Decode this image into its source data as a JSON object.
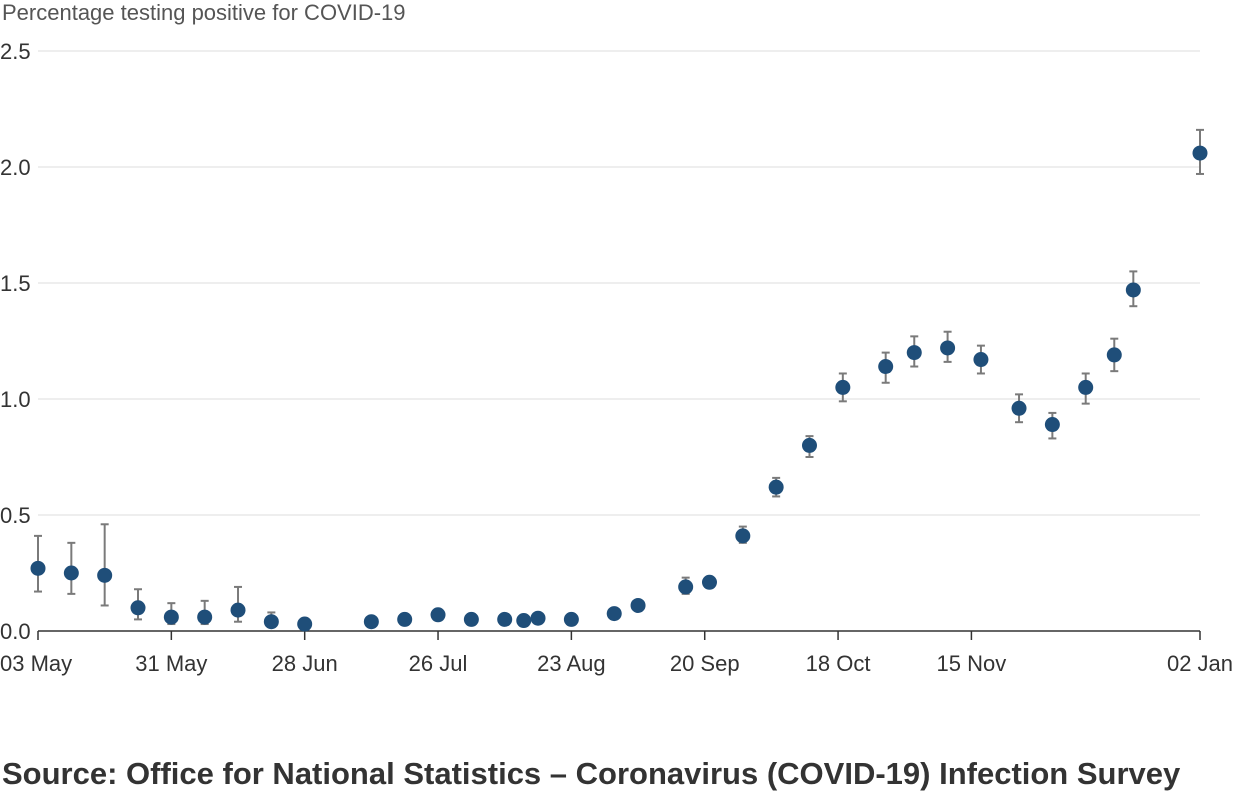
{
  "chart_data": {
    "type": "scatter",
    "ylabel": "Percentage testing positive for COVID-19",
    "xlabel": "",
    "ylim": [
      0,
      2.5
    ],
    "y_ticks": [
      "0.0",
      "0.5",
      "1.0",
      "1.5",
      "2.0",
      "2.5"
    ],
    "x_ticks": [
      {
        "date": "2020-05-03",
        "label": "03 May"
      },
      {
        "date": "2020-05-31",
        "label": "31 May"
      },
      {
        "date": "2020-06-28",
        "label": "28 Jun"
      },
      {
        "date": "2020-07-26",
        "label": "26 Jul"
      },
      {
        "date": "2020-08-23",
        "label": "23 Aug"
      },
      {
        "date": "2020-09-20",
        "label": "20 Sep"
      },
      {
        "date": "2020-10-18",
        "label": "18 Oct"
      },
      {
        "date": "2020-11-15",
        "label": "15 Nov"
      },
      {
        "date": "2021-01-02",
        "label": "02 Jan"
      }
    ],
    "grid": "horizontal",
    "colors": {
      "point": "#1f4e79",
      "error_bar": "#7a7a7a",
      "grid": "#dddddd",
      "axis": "#333333"
    },
    "points": [
      {
        "date": "2020-05-03",
        "value": 0.27,
        "low": 0.17,
        "high": 0.41
      },
      {
        "date": "2020-05-10",
        "value": 0.25,
        "low": 0.16,
        "high": 0.38
      },
      {
        "date": "2020-05-17",
        "value": 0.24,
        "low": 0.11,
        "high": 0.46
      },
      {
        "date": "2020-05-24",
        "value": 0.1,
        "low": 0.05,
        "high": 0.18
      },
      {
        "date": "2020-05-31",
        "value": 0.06,
        "low": 0.03,
        "high": 0.12
      },
      {
        "date": "2020-06-07",
        "value": 0.06,
        "low": 0.03,
        "high": 0.13
      },
      {
        "date": "2020-06-14",
        "value": 0.09,
        "low": 0.04,
        "high": 0.19
      },
      {
        "date": "2020-06-21",
        "value": 0.04,
        "low": 0.02,
        "high": 0.08
      },
      {
        "date": "2020-06-28",
        "value": 0.03,
        "low": 0.02,
        "high": 0.05
      },
      {
        "date": "2020-07-12",
        "value": 0.04,
        "low": 0.03,
        "high": 0.05
      },
      {
        "date": "2020-07-19",
        "value": 0.05,
        "low": 0.04,
        "high": 0.06
      },
      {
        "date": "2020-07-26",
        "value": 0.07,
        "low": 0.05,
        "high": 0.09
      },
      {
        "date": "2020-08-02",
        "value": 0.05,
        "low": 0.04,
        "high": 0.06
      },
      {
        "date": "2020-08-09",
        "value": 0.05,
        "low": 0.04,
        "high": 0.06
      },
      {
        "date": "2020-08-13",
        "value": 0.045,
        "low": 0.035,
        "high": 0.055
      },
      {
        "date": "2020-08-16",
        "value": 0.055,
        "low": 0.045,
        "high": 0.065
      },
      {
        "date": "2020-08-23",
        "value": 0.05,
        "low": 0.04,
        "high": 0.06
      },
      {
        "date": "2020-09-01",
        "value": 0.075,
        "low": 0.06,
        "high": 0.09
      },
      {
        "date": "2020-09-06",
        "value": 0.11,
        "low": 0.09,
        "high": 0.13
      },
      {
        "date": "2020-09-16",
        "value": 0.19,
        "low": 0.16,
        "high": 0.23
      },
      {
        "date": "2020-09-21",
        "value": 0.21,
        "low": 0.19,
        "high": 0.23
      },
      {
        "date": "2020-09-28",
        "value": 0.41,
        "low": 0.38,
        "high": 0.45
      },
      {
        "date": "2020-10-05",
        "value": 0.62,
        "low": 0.58,
        "high": 0.66
      },
      {
        "date": "2020-10-12",
        "value": 0.8,
        "low": 0.75,
        "high": 0.84
      },
      {
        "date": "2020-10-19",
        "value": 1.05,
        "low": 0.99,
        "high": 1.11
      },
      {
        "date": "2020-10-28",
        "value": 1.14,
        "low": 1.07,
        "high": 1.2
      },
      {
        "date": "2020-11-03",
        "value": 1.2,
        "low": 1.14,
        "high": 1.27
      },
      {
        "date": "2020-11-10",
        "value": 1.22,
        "low": 1.16,
        "high": 1.29
      },
      {
        "date": "2020-11-17",
        "value": 1.17,
        "low": 1.11,
        "high": 1.23
      },
      {
        "date": "2020-11-25",
        "value": 0.96,
        "low": 0.9,
        "high": 1.02
      },
      {
        "date": "2020-12-02",
        "value": 0.89,
        "low": 0.83,
        "high": 0.94
      },
      {
        "date": "2020-12-09",
        "value": 1.05,
        "low": 0.98,
        "high": 1.11
      },
      {
        "date": "2020-12-15",
        "value": 1.19,
        "low": 1.12,
        "high": 1.26
      },
      {
        "date": "2020-12-19",
        "value": 1.47,
        "low": 1.4,
        "high": 1.55
      },
      {
        "date": "2021-01-02",
        "value": 2.06,
        "low": 1.97,
        "high": 2.16
      }
    ]
  },
  "source_text": "Source: Office for National Statistics – Coronavirus (COVID-19) Infection Survey"
}
